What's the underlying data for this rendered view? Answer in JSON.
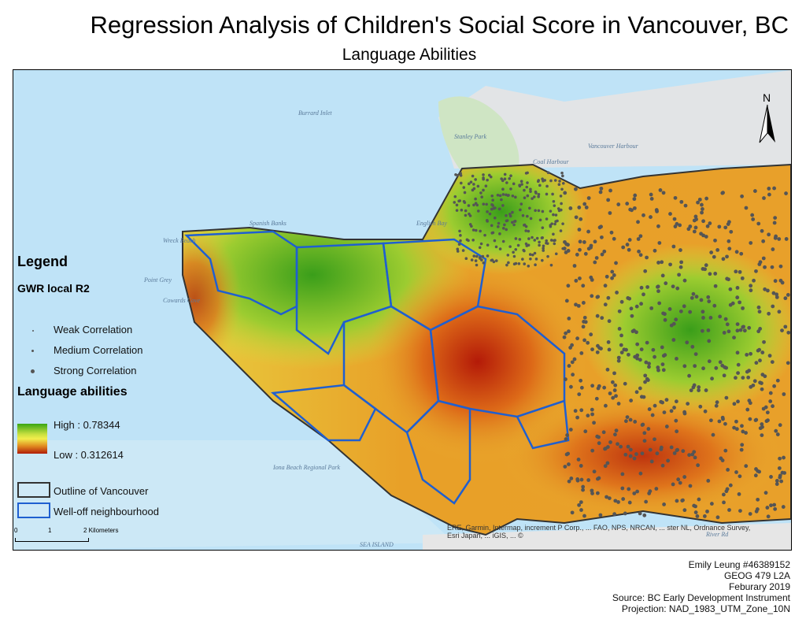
{
  "title": "Regression Analysis of Children's Social Score in Vancouver, BC",
  "subtitle": "Language Abilities",
  "map_labels": {
    "burrard_inlet": "Burrard Inlet",
    "english_bay": "English Bay",
    "coal_harbour": "Coal Harbour",
    "vancouver_harbour": "Vancouver Harbour",
    "stanley_park": "Stanley Park",
    "spanish_banks": "Spanish Banks",
    "wreck_beach": "Wreck Beach",
    "point_grey": "Point Grey",
    "cowards_cove": "Cowards Cove",
    "iona": "Iona Beach Regional Park",
    "sea_island": "SEA ISLAND",
    "river_rd": "River Rd",
    "north": "N"
  },
  "legend": {
    "heading": "Legend",
    "points_title": "GWR local R2",
    "points": [
      {
        "label": "Weak Correlation"
      },
      {
        "label": "Medium Correlation"
      },
      {
        "label": "Strong Correlation"
      }
    ],
    "raster_title": "Language abilities",
    "high": "High : 0.78344",
    "low": "Low : 0.312614",
    "ramp_colors": [
      "#3aa614",
      "#f2ee4c",
      "#b01c08"
    ],
    "outline": "Outline of Vancouver",
    "well_off": "Well-off neighbourhood",
    "outline_color": "#333333",
    "well_off_color": "#1f5fd0"
  },
  "scale": {
    "ticks": [
      "0",
      "1",
      "2 Kilometers"
    ]
  },
  "attribution": "ERE, Garmin, Intermap, increment P Corp., ... FAO, NPS, NRCAN, ... ster NL, Ordnance Survey, Esri Japan, ... iGIS, ... ©",
  "credits": [
    "Emily Leung #46389152",
    "GEOG 479 L2A",
    "Feburary 2019",
    "Source: BC Early Development Instrument",
    "Projection: NAD_1983_UTM_Zone_10N"
  ]
}
